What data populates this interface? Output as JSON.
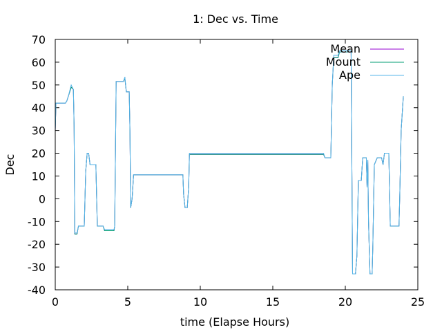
{
  "chart_data": {
    "type": "line",
    "title": "1: Dec vs. Time",
    "xlabel": "time (Elapse Hours)",
    "ylabel": "Dec",
    "xlim": [
      0,
      25
    ],
    "ylim": [
      -40,
      70
    ],
    "xticks": [
      0,
      5,
      10,
      15,
      20,
      25
    ],
    "yticks": [
      -40,
      -30,
      -20,
      -10,
      0,
      10,
      20,
      30,
      40,
      50,
      60,
      70
    ],
    "grid": false,
    "legend_position": "top-right",
    "series": [
      {
        "name": "Mean",
        "color": "#9400d3",
        "points": [
          [
            0,
            30
          ],
          [
            0.05,
            42
          ],
          [
            0.7,
            42
          ],
          [
            0.8,
            43
          ],
          [
            0.9,
            45
          ],
          [
            1.1,
            49
          ],
          [
            1.25,
            48
          ],
          [
            1.3,
            32
          ],
          [
            1.35,
            -15.5
          ],
          [
            1.5,
            -15.5
          ],
          [
            1.6,
            -12
          ],
          [
            2.0,
            -12
          ],
          [
            2.1,
            12
          ],
          [
            2.2,
            20
          ],
          [
            2.3,
            20
          ],
          [
            2.4,
            15
          ],
          [
            2.8,
            15
          ],
          [
            2.9,
            -12
          ],
          [
            3.3,
            -12
          ],
          [
            3.4,
            -14
          ],
          [
            4.05,
            -14
          ],
          [
            4.1,
            -12
          ],
          [
            4.2,
            51.5
          ],
          [
            4.7,
            51.5
          ],
          [
            4.8,
            53
          ],
          [
            4.9,
            47
          ],
          [
            5.1,
            47
          ],
          [
            5.15,
            30
          ],
          [
            5.2,
            -4
          ],
          [
            5.3,
            0
          ],
          [
            5.4,
            10.5
          ],
          [
            8.8,
            10.5
          ],
          [
            8.85,
            2
          ],
          [
            8.95,
            -4
          ],
          [
            9.1,
            -4
          ],
          [
            9.2,
            5
          ],
          [
            9.25,
            19.5
          ],
          [
            18.5,
            19.5
          ],
          [
            18.6,
            18
          ],
          [
            19.0,
            18
          ],
          [
            19.1,
            50
          ],
          [
            19.2,
            62
          ],
          [
            19.5,
            62
          ],
          [
            19.6,
            64.5
          ],
          [
            20.4,
            64.5
          ],
          [
            20.5,
            -33
          ],
          [
            20.7,
            -33
          ],
          [
            20.8,
            -25
          ],
          [
            20.9,
            8
          ],
          [
            21.1,
            8
          ],
          [
            21.2,
            18
          ],
          [
            21.45,
            18
          ],
          [
            21.5,
            5
          ],
          [
            21.55,
            17
          ],
          [
            21.6,
            -10
          ],
          [
            21.7,
            -33
          ],
          [
            21.85,
            -33
          ],
          [
            21.9,
            -20
          ],
          [
            22.0,
            15
          ],
          [
            22.2,
            18
          ],
          [
            22.5,
            18
          ],
          [
            22.6,
            15
          ],
          [
            22.7,
            20
          ],
          [
            23.0,
            20
          ],
          [
            23.1,
            -12
          ],
          [
            23.7,
            -12
          ],
          [
            23.75,
            0
          ],
          [
            23.85,
            30
          ],
          [
            24.0,
            45
          ]
        ]
      },
      {
        "name": "Mount",
        "color": "#009e73",
        "points": [
          [
            0,
            30
          ],
          [
            0.05,
            42
          ],
          [
            0.7,
            42
          ],
          [
            0.8,
            43
          ],
          [
            0.9,
            45
          ],
          [
            1.1,
            49
          ],
          [
            1.25,
            48
          ],
          [
            1.3,
            32
          ],
          [
            1.35,
            -15.5
          ],
          [
            1.5,
            -15.5
          ],
          [
            1.6,
            -12
          ],
          [
            2.0,
            -12
          ],
          [
            2.1,
            12
          ],
          [
            2.2,
            20
          ],
          [
            2.3,
            20
          ],
          [
            2.4,
            15
          ],
          [
            2.8,
            15
          ],
          [
            2.9,
            -12
          ],
          [
            3.3,
            -12
          ],
          [
            3.4,
            -14
          ],
          [
            4.05,
            -14
          ],
          [
            4.1,
            -12
          ],
          [
            4.2,
            51.5
          ],
          [
            4.7,
            51.5
          ],
          [
            4.8,
            53
          ],
          [
            4.9,
            47
          ],
          [
            5.1,
            47
          ],
          [
            5.15,
            30
          ],
          [
            5.2,
            -4
          ],
          [
            5.3,
            0
          ],
          [
            5.4,
            10.5
          ],
          [
            8.8,
            10.5
          ],
          [
            8.85,
            2
          ],
          [
            8.95,
            -4
          ],
          [
            9.1,
            -4
          ],
          [
            9.2,
            5
          ],
          [
            9.25,
            19.5
          ],
          [
            18.5,
            19.5
          ],
          [
            18.6,
            18
          ],
          [
            19.0,
            18
          ],
          [
            19.1,
            50
          ],
          [
            19.2,
            62
          ],
          [
            19.5,
            62
          ],
          [
            19.6,
            64.5
          ],
          [
            20.4,
            64.5
          ],
          [
            20.5,
            -33
          ],
          [
            20.7,
            -33
          ],
          [
            20.8,
            -25
          ],
          [
            20.9,
            8
          ],
          [
            21.1,
            8
          ],
          [
            21.2,
            18
          ],
          [
            21.45,
            18
          ],
          [
            21.5,
            5
          ],
          [
            21.55,
            17
          ],
          [
            21.6,
            -10
          ],
          [
            21.7,
            -33
          ],
          [
            21.85,
            -33
          ],
          [
            21.9,
            -20
          ],
          [
            22.0,
            15
          ],
          [
            22.2,
            18
          ],
          [
            22.5,
            18
          ],
          [
            22.6,
            15
          ],
          [
            22.7,
            20
          ],
          [
            23.0,
            20
          ],
          [
            23.1,
            -12
          ],
          [
            23.7,
            -12
          ],
          [
            23.75,
            0
          ],
          [
            23.85,
            30
          ],
          [
            24.0,
            45
          ]
        ]
      },
      {
        "name": "Ape",
        "color": "#56b4e9",
        "points": [
          [
            0,
            30
          ],
          [
            0.05,
            42
          ],
          [
            0.7,
            42
          ],
          [
            0.8,
            43
          ],
          [
            0.9,
            45
          ],
          [
            1.1,
            50
          ],
          [
            1.25,
            48
          ],
          [
            1.3,
            32
          ],
          [
            1.35,
            -15
          ],
          [
            1.5,
            -15
          ],
          [
            1.6,
            -12
          ],
          [
            2.0,
            -12
          ],
          [
            2.1,
            12
          ],
          [
            2.2,
            20
          ],
          [
            2.3,
            20
          ],
          [
            2.4,
            15
          ],
          [
            2.8,
            15
          ],
          [
            2.9,
            -12
          ],
          [
            3.3,
            -12
          ],
          [
            3.4,
            -13.5
          ],
          [
            4.05,
            -13.5
          ],
          [
            4.1,
            -12
          ],
          [
            4.2,
            51.5
          ],
          [
            4.7,
            51.5
          ],
          [
            4.8,
            53.5
          ],
          [
            4.9,
            47
          ],
          [
            5.1,
            47
          ],
          [
            5.15,
            30
          ],
          [
            5.2,
            -4
          ],
          [
            5.3,
            0
          ],
          [
            5.4,
            10.5
          ],
          [
            8.8,
            10.5
          ],
          [
            8.85,
            2
          ],
          [
            8.95,
            -4
          ],
          [
            9.1,
            -4
          ],
          [
            9.2,
            5
          ],
          [
            9.25,
            20
          ],
          [
            18.5,
            20
          ],
          [
            18.6,
            18
          ],
          [
            19.0,
            18
          ],
          [
            19.1,
            50
          ],
          [
            19.2,
            63
          ],
          [
            19.5,
            63
          ],
          [
            19.6,
            65
          ],
          [
            20.4,
            65
          ],
          [
            20.5,
            -33
          ],
          [
            20.7,
            -33
          ],
          [
            20.8,
            -25
          ],
          [
            20.9,
            8
          ],
          [
            21.1,
            8
          ],
          [
            21.2,
            18
          ],
          [
            21.45,
            18
          ],
          [
            21.5,
            5
          ],
          [
            21.55,
            17
          ],
          [
            21.6,
            -10
          ],
          [
            21.7,
            -33
          ],
          [
            21.85,
            -33
          ],
          [
            21.9,
            -20
          ],
          [
            22.0,
            15
          ],
          [
            22.2,
            18
          ],
          [
            22.5,
            18
          ],
          [
            22.6,
            15
          ],
          [
            22.7,
            20
          ],
          [
            23.0,
            20
          ],
          [
            23.1,
            -12
          ],
          [
            23.7,
            -12
          ],
          [
            23.75,
            0
          ],
          [
            23.85,
            30
          ],
          [
            24.0,
            45
          ]
        ]
      }
    ]
  }
}
